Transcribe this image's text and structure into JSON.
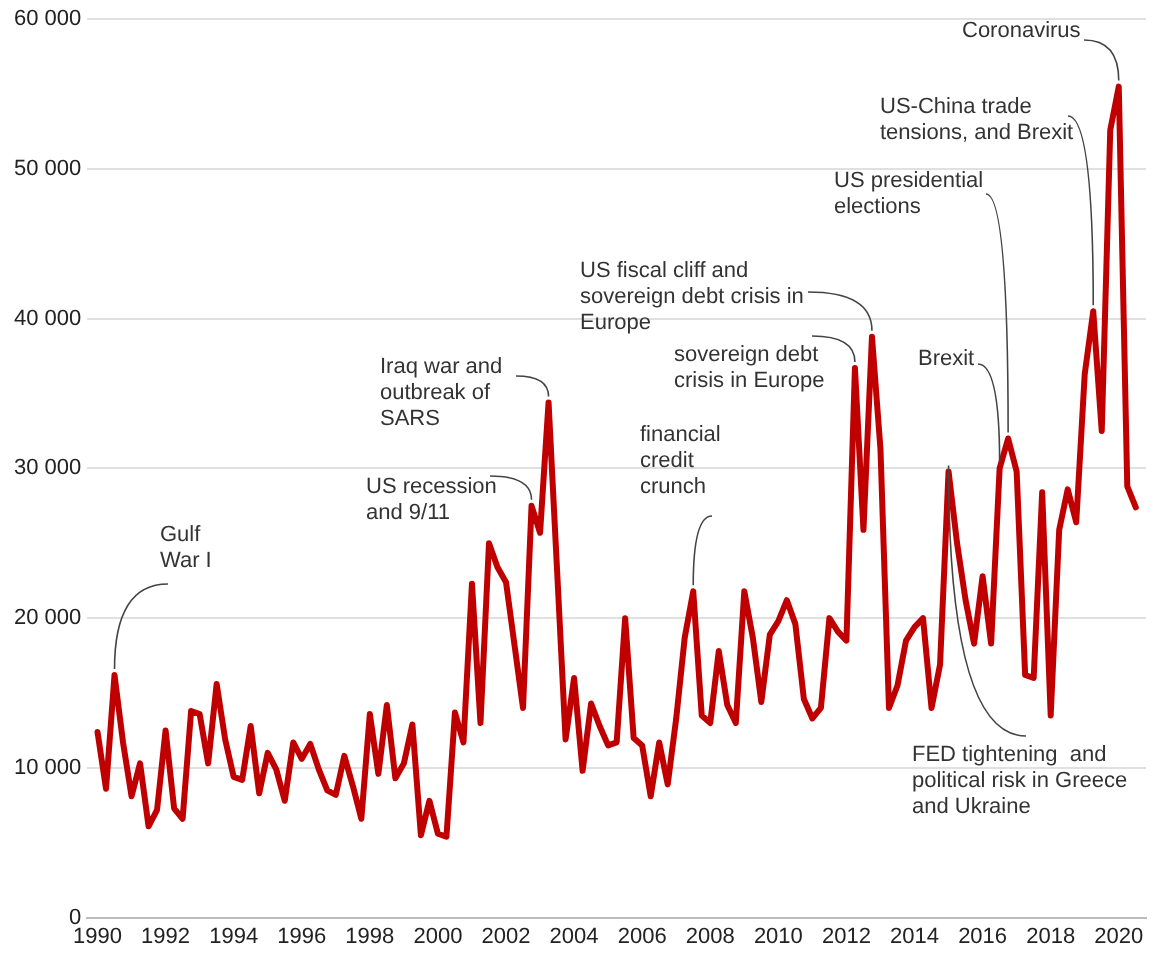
{
  "chart_data": {
    "type": "line",
    "x": [
      1990,
      1990.25,
      1990.5,
      1990.75,
      1991,
      1991.25,
      1991.5,
      1991.75,
      1992,
      1992.25,
      1992.5,
      1992.75,
      1993,
      1993.25,
      1993.5,
      1993.75,
      1994,
      1994.25,
      1994.5,
      1994.75,
      1995,
      1995.25,
      1995.5,
      1995.75,
      1996,
      1996.25,
      1996.5,
      1996.75,
      1997,
      1997.25,
      1997.5,
      1997.75,
      1998,
      1998.25,
      1998.5,
      1998.75,
      1999,
      1999.25,
      1999.5,
      1999.75,
      2000,
      2000.25,
      2000.5,
      2000.75,
      2001,
      2001.25,
      2001.5,
      2001.75,
      2002,
      2002.25,
      2002.5,
      2002.75,
      2003,
      2003.25,
      2003.5,
      2003.75,
      2004,
      2004.25,
      2004.5,
      2004.75,
      2005,
      2005.25,
      2005.5,
      2005.75,
      2006,
      2006.25,
      2006.5,
      2006.75,
      2007,
      2007.25,
      2007.5,
      2007.75,
      2008,
      2008.25,
      2008.5,
      2008.75,
      2009,
      2009.25,
      2009.5,
      2009.75,
      2010,
      2010.25,
      2010.5,
      2010.75,
      2011,
      2011.25,
      2011.5,
      2011.75,
      2012,
      2012.25,
      2012.5,
      2012.75,
      2013,
      2013.25,
      2013.5,
      2013.75,
      2014,
      2014.25,
      2014.5,
      2014.75,
      2015,
      2015.25,
      2015.5,
      2015.75,
      2016,
      2016.25,
      2016.5,
      2016.75,
      2017,
      2017.25,
      2017.5,
      2017.75,
      2018,
      2018.25,
      2018.5,
      2018.75,
      2019,
      2019.25,
      2019.5,
      2019.75,
      2020,
      2020.25,
      2020.5
    ],
    "series": [
      {
        "color": "#c00000",
        "values": [
          12400,
          8600,
          16200,
          11700,
          8100,
          10300,
          6100,
          7200,
          12500,
          7300,
          6600,
          13800,
          13600,
          10300,
          15600,
          11900,
          9400,
          9200,
          12800,
          8300,
          11000,
          9900,
          7800,
          11700,
          10600,
          11600,
          9900,
          8500,
          8200,
          10800,
          8800,
          6600,
          13600,
          9600,
          14200,
          9300,
          10300,
          12900,
          5500,
          7800,
          5600,
          5400,
          13700,
          11700,
          22300,
          13000,
          25000,
          23400,
          22400,
          18200,
          14000,
          27500,
          25700,
          34400,
          23200,
          11900,
          16000,
          9800,
          14300,
          12800,
          11500,
          11700,
          20000,
          12000,
          11500,
          8100,
          11700,
          8900,
          13300,
          18700,
          21800,
          13500,
          13000,
          17800,
          14200,
          13000,
          21800,
          18700,
          14400,
          18900,
          19800,
          21200,
          19600,
          14600,
          13300,
          14000,
          20000,
          19100,
          18500,
          36700,
          25900,
          38800,
          31300,
          14000,
          15500,
          18500,
          19400,
          20000,
          14000,
          16900,
          29800,
          25000,
          21200,
          18300,
          22800,
          18300,
          30000,
          32000,
          29800,
          16200,
          16000,
          28400,
          13500,
          25900,
          28600,
          26400,
          36300,
          40500,
          32500,
          52600,
          55500,
          28800,
          27400
        ]
      }
    ],
    "xlim": [
      1989.7,
      2020.8
    ],
    "xticks": [
      1990,
      1992,
      1994,
      1996,
      1998,
      2000,
      2002,
      2004,
      2006,
      2008,
      2010,
      2012,
      2014,
      2016,
      2018,
      2020
    ],
    "ylim": [
      0,
      60000
    ],
    "yticks": [
      0,
      {
        "value": 10000,
        "label": "10 000"
      },
      {
        "value": 20000,
        "label": "20 000"
      },
      {
        "value": 30000,
        "label": "30 000"
      },
      {
        "value": 40000,
        "label": "40 000"
      },
      {
        "value": 50000,
        "label": "50 000"
      },
      {
        "value": 60000,
        "label": "60 000"
      }
    ],
    "grid": "y",
    "legend": false,
    "marker": "none",
    "line_style": "solid",
    "annotations": [
      {
        "text": "Gulf\nWar I",
        "x": 1990.5,
        "y": 16200
      },
      {
        "text": "US recession\nand 9/11",
        "x": 2002.75,
        "y": 27500
      },
      {
        "text": "Iraq war and\noutbreak of\nSARS",
        "x": 2003.25,
        "y": 34400
      },
      {
        "text": "financial\ncredit\ncrunch",
        "x": 2007.5,
        "y": 21800
      },
      {
        "text": "US fiscal cliff and\nsovereign debt crisis in\nEurope",
        "x": 2012.75,
        "y": 38800
      },
      {
        "text": "sovereign debt\ncrisis in Europe",
        "x": 2012.25,
        "y": 36700
      },
      {
        "text": "Brexit",
        "x": 2016.5,
        "y": 30000
      },
      {
        "text": "US presidential\nelections",
        "x": 2016.75,
        "y": 32000
      },
      {
        "text": "US-China trade\ntensions, and Brexit",
        "x": 2019.25,
        "y": 40500
      },
      {
        "text": "Coronavirus",
        "x": 2020,
        "y": 55500
      },
      {
        "text": "FED tightening  and\npolitical risk in Greece\nand Ukraine",
        "x": 2015,
        "y": 29800
      }
    ]
  }
}
